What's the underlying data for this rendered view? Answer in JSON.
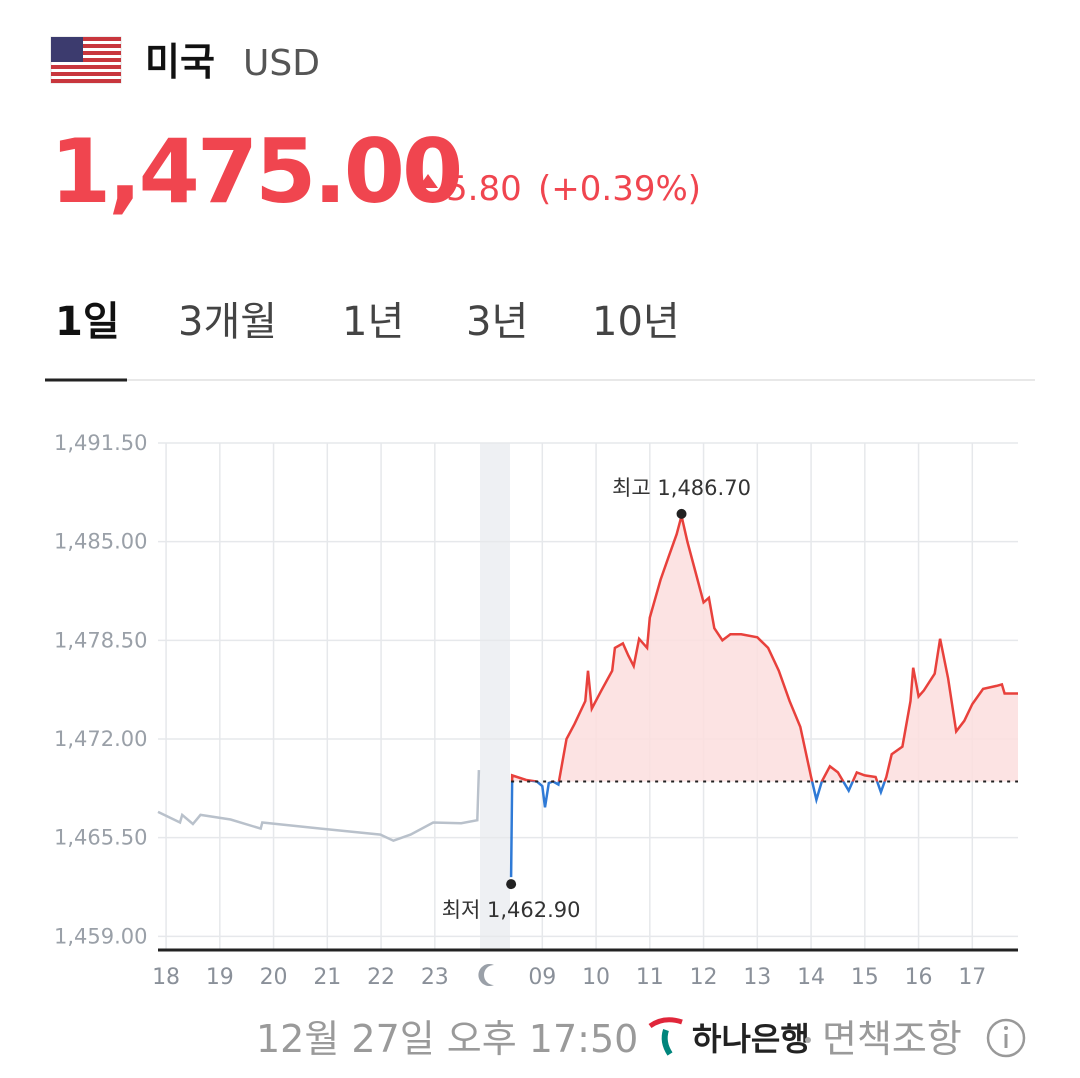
{
  "header": {
    "country": "미국",
    "currency": "USD",
    "price": "1,475.00",
    "change": "5.80",
    "change_percent": "(+0.39%)"
  },
  "tabs": [
    "1일",
    "3개월",
    "1년",
    "3년",
    "10년"
  ],
  "chart_data": {
    "type": "line",
    "xlim": [
      -0.15,
      15.85
    ],
    "ylim": [
      1458.1,
      1491.5
    ],
    "xticks": [
      {
        "value": 0,
        "label": "18"
      },
      {
        "value": 1,
        "label": "19"
      },
      {
        "value": 2,
        "label": "20"
      },
      {
        "value": 3,
        "label": "21"
      },
      {
        "value": 4,
        "label": "22"
      },
      {
        "value": 5,
        "label": "23"
      },
      {
        "value": 7,
        "label": "09"
      },
      {
        "value": 8,
        "label": "10"
      },
      {
        "value": 9,
        "label": "11"
      },
      {
        "value": 10,
        "label": "12"
      },
      {
        "value": 11,
        "label": "13"
      },
      {
        "value": 12,
        "label": "14"
      },
      {
        "value": 13,
        "label": "15"
      },
      {
        "value": 14,
        "label": "16"
      },
      {
        "value": 15,
        "label": "17"
      }
    ],
    "yticks": [
      {
        "value": 1459,
        "label": "1,459.00"
      },
      {
        "value": 1465.5,
        "label": "1,465.50"
      },
      {
        "value": 1472,
        "label": "1,472.00"
      },
      {
        "value": 1478.5,
        "label": "1,478.50"
      },
      {
        "value": 1485,
        "label": "1,485.00"
      },
      {
        "value": 1491.5,
        "label": "1,491.50"
      }
    ],
    "grid": true,
    "baseline": 1469.2,
    "series": [
      {
        "color": "#b9c1cb",
        "x": [
          -0.15,
          0.26,
          0.3,
          0.5,
          0.64,
          1.2,
          1.76,
          1.79,
          2.88,
          3.99,
          4.23,
          4.55,
          4.97,
          5.49,
          5.79,
          5.82
        ],
        "values": [
          1467.2,
          1466.5,
          1467.0,
          1466.4,
          1467.0,
          1466.7,
          1466.1,
          1466.5,
          1466.1,
          1465.7,
          1465.3,
          1465.7,
          1466.5,
          1466.45,
          1466.65,
          1469.95
        ]
      },
      {
        "color": "#e8413c",
        "below_color": "#2f7ad6",
        "fill": "#fcdede",
        "x": [
          6.42,
          6.44,
          6.7,
          6.9,
          7.0,
          7.05,
          7.12,
          7.2,
          7.3,
          7.45,
          7.6,
          7.8,
          7.85,
          7.92,
          8.1,
          8.3,
          8.35,
          8.5,
          8.6,
          8.7,
          8.8,
          8.95,
          9.0,
          9.2,
          9.35,
          9.5,
          9.59,
          9.7,
          9.85,
          10.0,
          10.1,
          10.2,
          10.35,
          10.5,
          10.7,
          11.0,
          11.2,
          11.4,
          11.6,
          11.8,
          12.0,
          12.1,
          12.2,
          12.35,
          12.5,
          12.7,
          12.85,
          13.0,
          13.2,
          13.3,
          13.4,
          13.5,
          13.7,
          13.85,
          13.9,
          14.0,
          14.1,
          14.3,
          14.4,
          14.55,
          14.7,
          14.85,
          15.0,
          15.2,
          15.45,
          15.55,
          15.6,
          15.85
        ],
        "values": [
          1462.9,
          1469.6,
          1469.3,
          1469.2,
          1468.9,
          1467.5,
          1469.1,
          1469.2,
          1469.0,
          1472.0,
          1473.0,
          1474.5,
          1476.5,
          1474.0,
          1475.2,
          1476.5,
          1478.0,
          1478.3,
          1477.5,
          1476.8,
          1478.6,
          1478.0,
          1480.0,
          1482.5,
          1484.0,
          1485.5,
          1486.7,
          1485.0,
          1483.0,
          1481.0,
          1481.3,
          1479.3,
          1478.5,
          1478.9,
          1478.9,
          1478.7,
          1478.0,
          1476.5,
          1474.5,
          1472.8,
          1469.5,
          1468.0,
          1469.2,
          1470.2,
          1469.8,
          1468.6,
          1469.8,
          1469.6,
          1469.5,
          1468.5,
          1469.5,
          1471.0,
          1471.5,
          1474.5,
          1476.7,
          1474.8,
          1475.2,
          1476.3,
          1478.6,
          1476.0,
          1472.5,
          1473.2,
          1474.3,
          1475.3,
          1475.5,
          1475.6,
          1475.0,
          1475.0
        ]
      }
    ],
    "annotations": [
      {
        "text": "최고 1,486.70",
        "x": 9.59,
        "y": 1486.7
      },
      {
        "text": "최저 1,462.90",
        "x": 6.42,
        "y": 1462.9
      }
    ]
  },
  "footer": {
    "timestamp": "12월 27일 오후 17:50",
    "bank": "하나은행",
    "disclaimer": "면책조항"
  }
}
